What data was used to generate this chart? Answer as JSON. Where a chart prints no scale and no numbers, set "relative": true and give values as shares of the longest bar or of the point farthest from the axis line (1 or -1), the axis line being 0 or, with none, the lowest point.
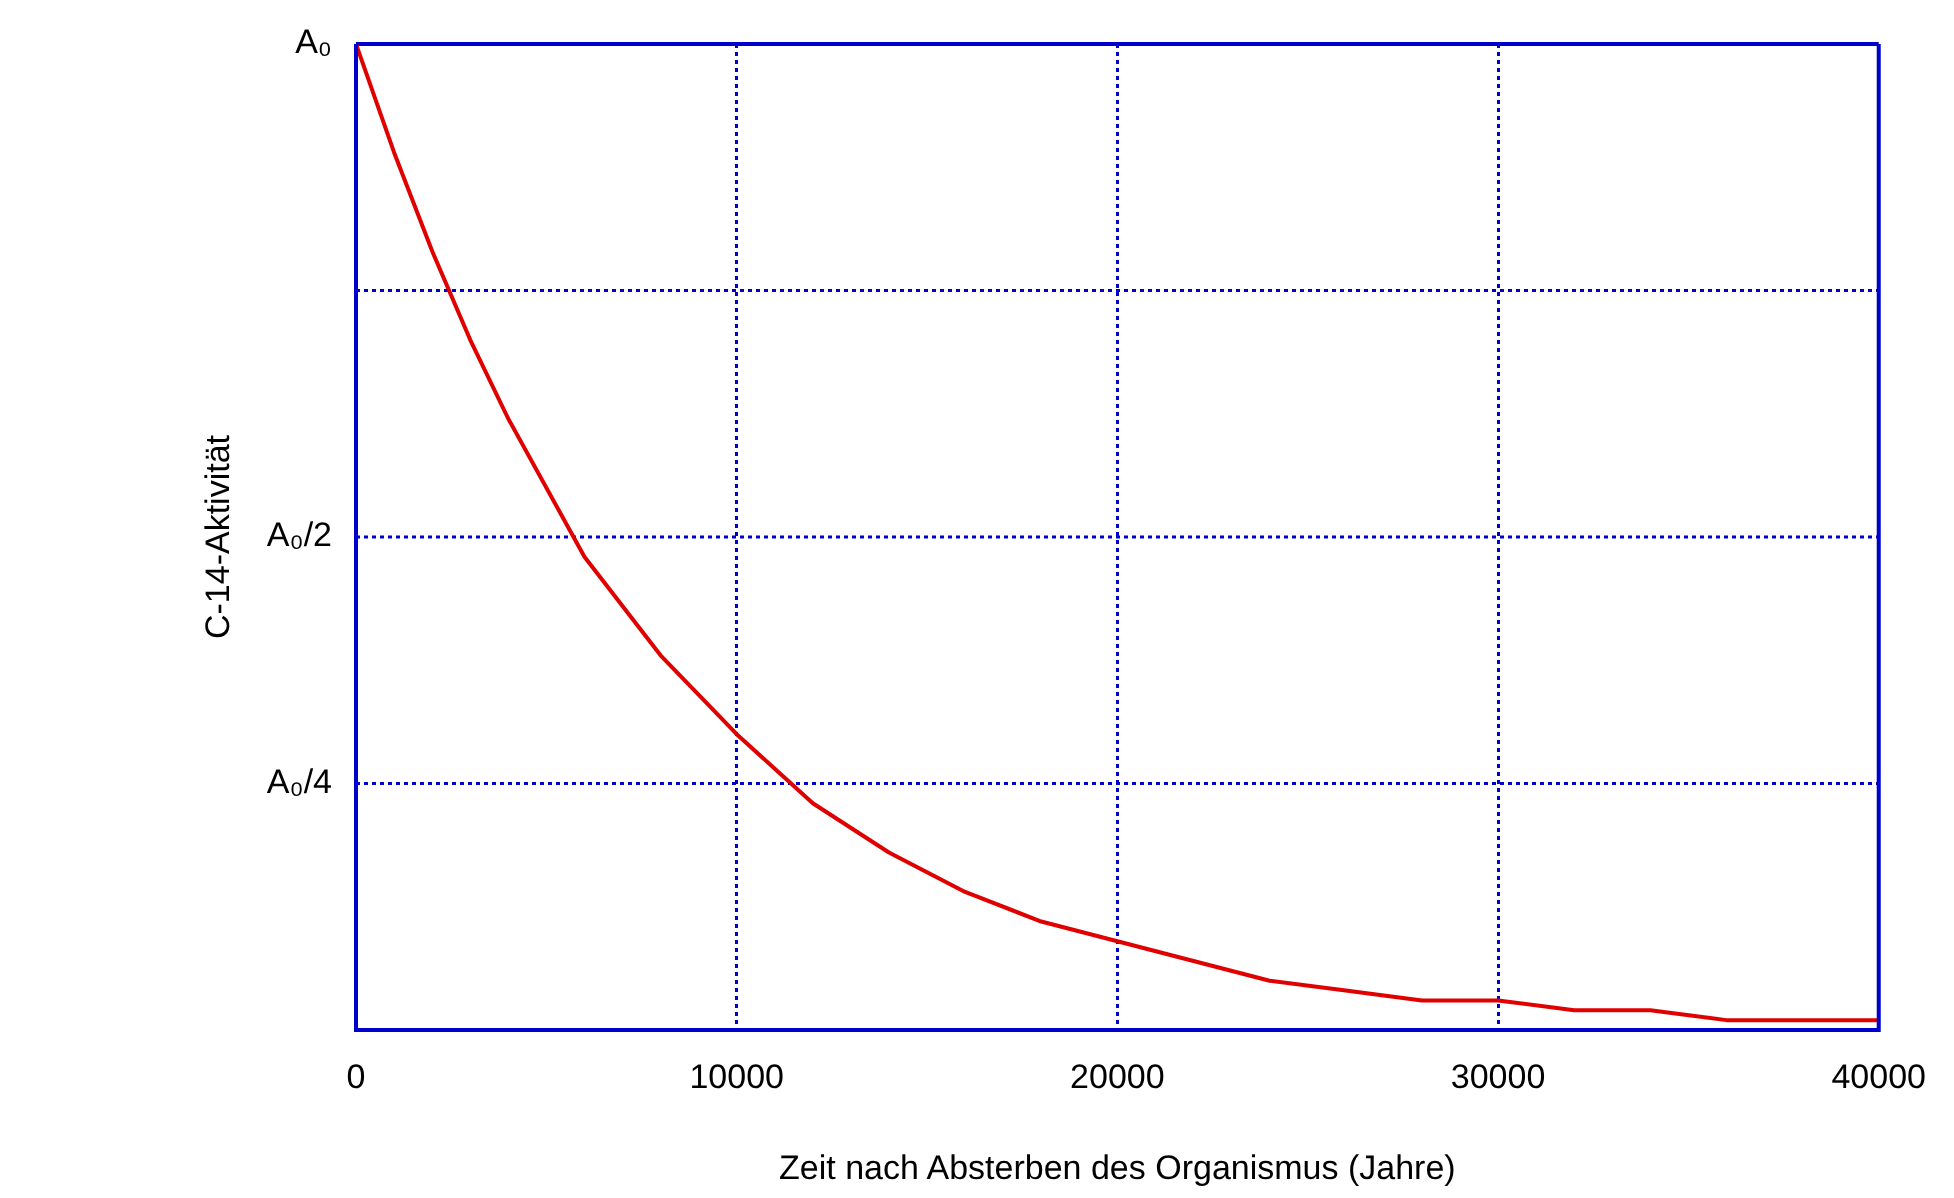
{
  "chart_data": {
    "type": "line",
    "xlabel": "Zeit nach Absterben des Organismus (Jahre)",
    "ylabel": "C-14-Aktivität",
    "relative": true,
    "x": [
      0,
      1000,
      2000,
      3000,
      4000,
      6000,
      8000,
      10000,
      12000,
      14000,
      16000,
      18000,
      20000,
      22000,
      24000,
      26000,
      28000,
      30000,
      32000,
      34000,
      36000,
      38000,
      40000
    ],
    "series": [
      {
        "color": "#e00000",
        "values": [
          1,
          0.89,
          0.79,
          0.7,
          0.62,
          0.48,
          0.38,
          0.3,
          0.23,
          0.18,
          0.14,
          0.11,
          0.09,
          0.07,
          0.05,
          0.04,
          0.03,
          0.03,
          0.02,
          0.02,
          0.01,
          0.01,
          0.01
        ]
      }
    ],
    "xlim": [
      0,
      40000
    ],
    "xticks": [
      0,
      10000,
      20000,
      30000,
      40000
    ],
    "ref_lines": [
      {
        "axis": "y",
        "value": 1,
        "label": "A₀",
        "color": "#0000cc",
        "line_style": "solid"
      },
      {
        "axis": "y",
        "value": 0.75,
        "color": "#0000cc",
        "line_style": "dotted"
      },
      {
        "axis": "y",
        "value": 0.5,
        "label": "A₀/2",
        "color": "#0000cc",
        "line_style": "dotted"
      },
      {
        "axis": "y",
        "value": 0.25,
        "label": "A₀/4",
        "color": "#0000cc",
        "line_style": "dotted"
      }
    ],
    "grid": "x",
    "legend": false,
    "marker": "none",
    "line_style": "solid"
  }
}
